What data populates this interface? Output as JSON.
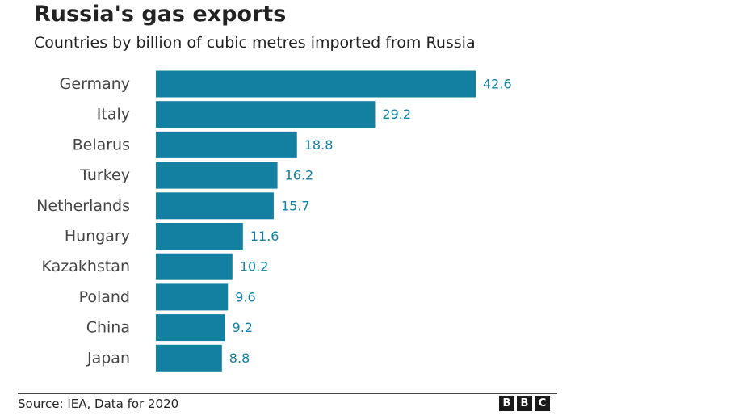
{
  "chart_data": {
    "type": "bar",
    "orientation": "horizontal",
    "title": "Russia's gas exports",
    "subtitle": "Countries by billion of cubic metres imported from Russia",
    "categories": [
      "Germany",
      "Italy",
      "Belarus",
      "Turkey",
      "Netherlands",
      "Hungary",
      "Kazakhstan",
      "Poland",
      "China",
      "Japan"
    ],
    "values": [
      42.6,
      29.2,
      18.8,
      16.2,
      15.7,
      11.6,
      10.2,
      9.6,
      9.2,
      8.8
    ],
    "value_labels": [
      "42.6",
      "29.2",
      "18.8",
      "16.2",
      "15.7",
      "11.6",
      "10.2",
      "9.6",
      "9.2",
      "8.8"
    ],
    "xlabel": "",
    "ylabel": "",
    "xlim": [
      0,
      42.6
    ],
    "grid": false,
    "legend": "none",
    "bar_color": "#1380A1",
    "label_color": "#1380A1",
    "category_label_color": "#444444"
  },
  "footer": {
    "source": "Source: IEA, Data for 2020",
    "logo_letters": [
      "B",
      "B",
      "C"
    ]
  }
}
